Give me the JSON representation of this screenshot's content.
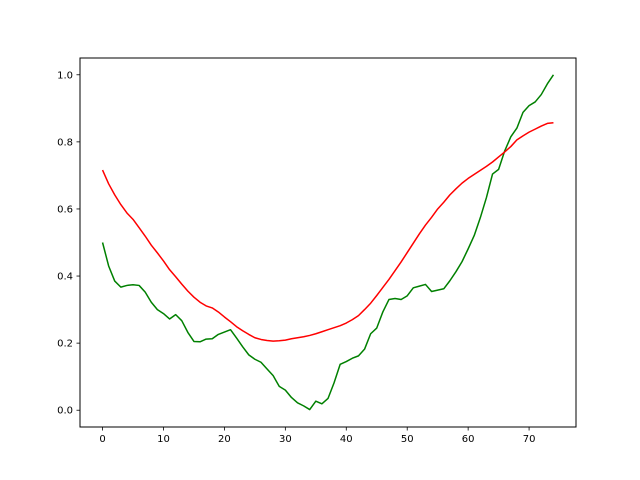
{
  "chart_data": {
    "type": "line",
    "title": "",
    "xlabel": "",
    "ylabel": "",
    "xlim": [
      -3.7,
      77.7
    ],
    "ylim": [
      -0.05,
      1.05
    ],
    "x_ticks": [
      0,
      10,
      20,
      30,
      40,
      50,
      60,
      70
    ],
    "y_ticks": [
      0.0,
      0.2,
      0.4,
      0.6,
      0.8,
      1.0
    ],
    "x_tick_labels": [
      "0",
      "10",
      "20",
      "30",
      "40",
      "50",
      "60",
      "70"
    ],
    "y_tick_labels": [
      "0.0",
      "0.2",
      "0.4",
      "0.6",
      "0.8",
      "1.0"
    ],
    "grid": false,
    "x": [
      0,
      1,
      2,
      3,
      4,
      5,
      6,
      7,
      8,
      9,
      10,
      11,
      12,
      13,
      14,
      15,
      16,
      17,
      18,
      19,
      20,
      21,
      22,
      23,
      24,
      25,
      26,
      27,
      28,
      29,
      30,
      31,
      32,
      33,
      34,
      35,
      36,
      37,
      38,
      39,
      40,
      41,
      42,
      43,
      44,
      45,
      46,
      47,
      48,
      49,
      50,
      51,
      52,
      53,
      54,
      55,
      56,
      57,
      58,
      59,
      60,
      61,
      62,
      63,
      64,
      65,
      66,
      67,
      68,
      69,
      70,
      71,
      72,
      73,
      74
    ],
    "series": [
      {
        "color": "#008000",
        "values": [
          0.5,
          0.43,
          0.385,
          0.367,
          0.372,
          0.374,
          0.372,
          0.352,
          0.322,
          0.3,
          0.288,
          0.272,
          0.285,
          0.267,
          0.232,
          0.205,
          0.204,
          0.212,
          0.213,
          0.226,
          0.233,
          0.24,
          0.215,
          0.189,
          0.165,
          0.152,
          0.143,
          0.123,
          0.103,
          0.071,
          0.06,
          0.038,
          0.022,
          0.013,
          0.002,
          0.027,
          0.019,
          0.035,
          0.082,
          0.137,
          0.145,
          0.155,
          0.162,
          0.182,
          0.228,
          0.245,
          0.293,
          0.33,
          0.333,
          0.33,
          0.341,
          0.365,
          0.37,
          0.375,
          0.354,
          0.358,
          0.362,
          0.386,
          0.413,
          0.443,
          0.481,
          0.521,
          0.574,
          0.634,
          0.704,
          0.718,
          0.773,
          0.815,
          0.841,
          0.888,
          0.908,
          0.919,
          0.941,
          0.973,
          1.0
        ]
      },
      {
        "color": "#ff0000",
        "values": [
          0.716,
          0.675,
          0.642,
          0.613,
          0.588,
          0.569,
          0.544,
          0.519,
          0.492,
          0.469,
          0.445,
          0.419,
          0.398,
          0.376,
          0.355,
          0.337,
          0.322,
          0.311,
          0.305,
          0.293,
          0.278,
          0.264,
          0.249,
          0.237,
          0.226,
          0.216,
          0.211,
          0.208,
          0.206,
          0.207,
          0.209,
          0.213,
          0.216,
          0.219,
          0.223,
          0.228,
          0.234,
          0.24,
          0.246,
          0.252,
          0.26,
          0.27,
          0.282,
          0.3,
          0.319,
          0.342,
          0.366,
          0.39,
          0.416,
          0.442,
          0.47,
          0.498,
          0.526,
          0.552,
          0.575,
          0.6,
          0.62,
          0.642,
          0.66,
          0.677,
          0.691,
          0.703,
          0.715,
          0.727,
          0.74,
          0.755,
          0.77,
          0.786,
          0.806,
          0.818,
          0.829,
          0.838,
          0.847,
          0.855,
          0.857
        ]
      }
    ]
  }
}
